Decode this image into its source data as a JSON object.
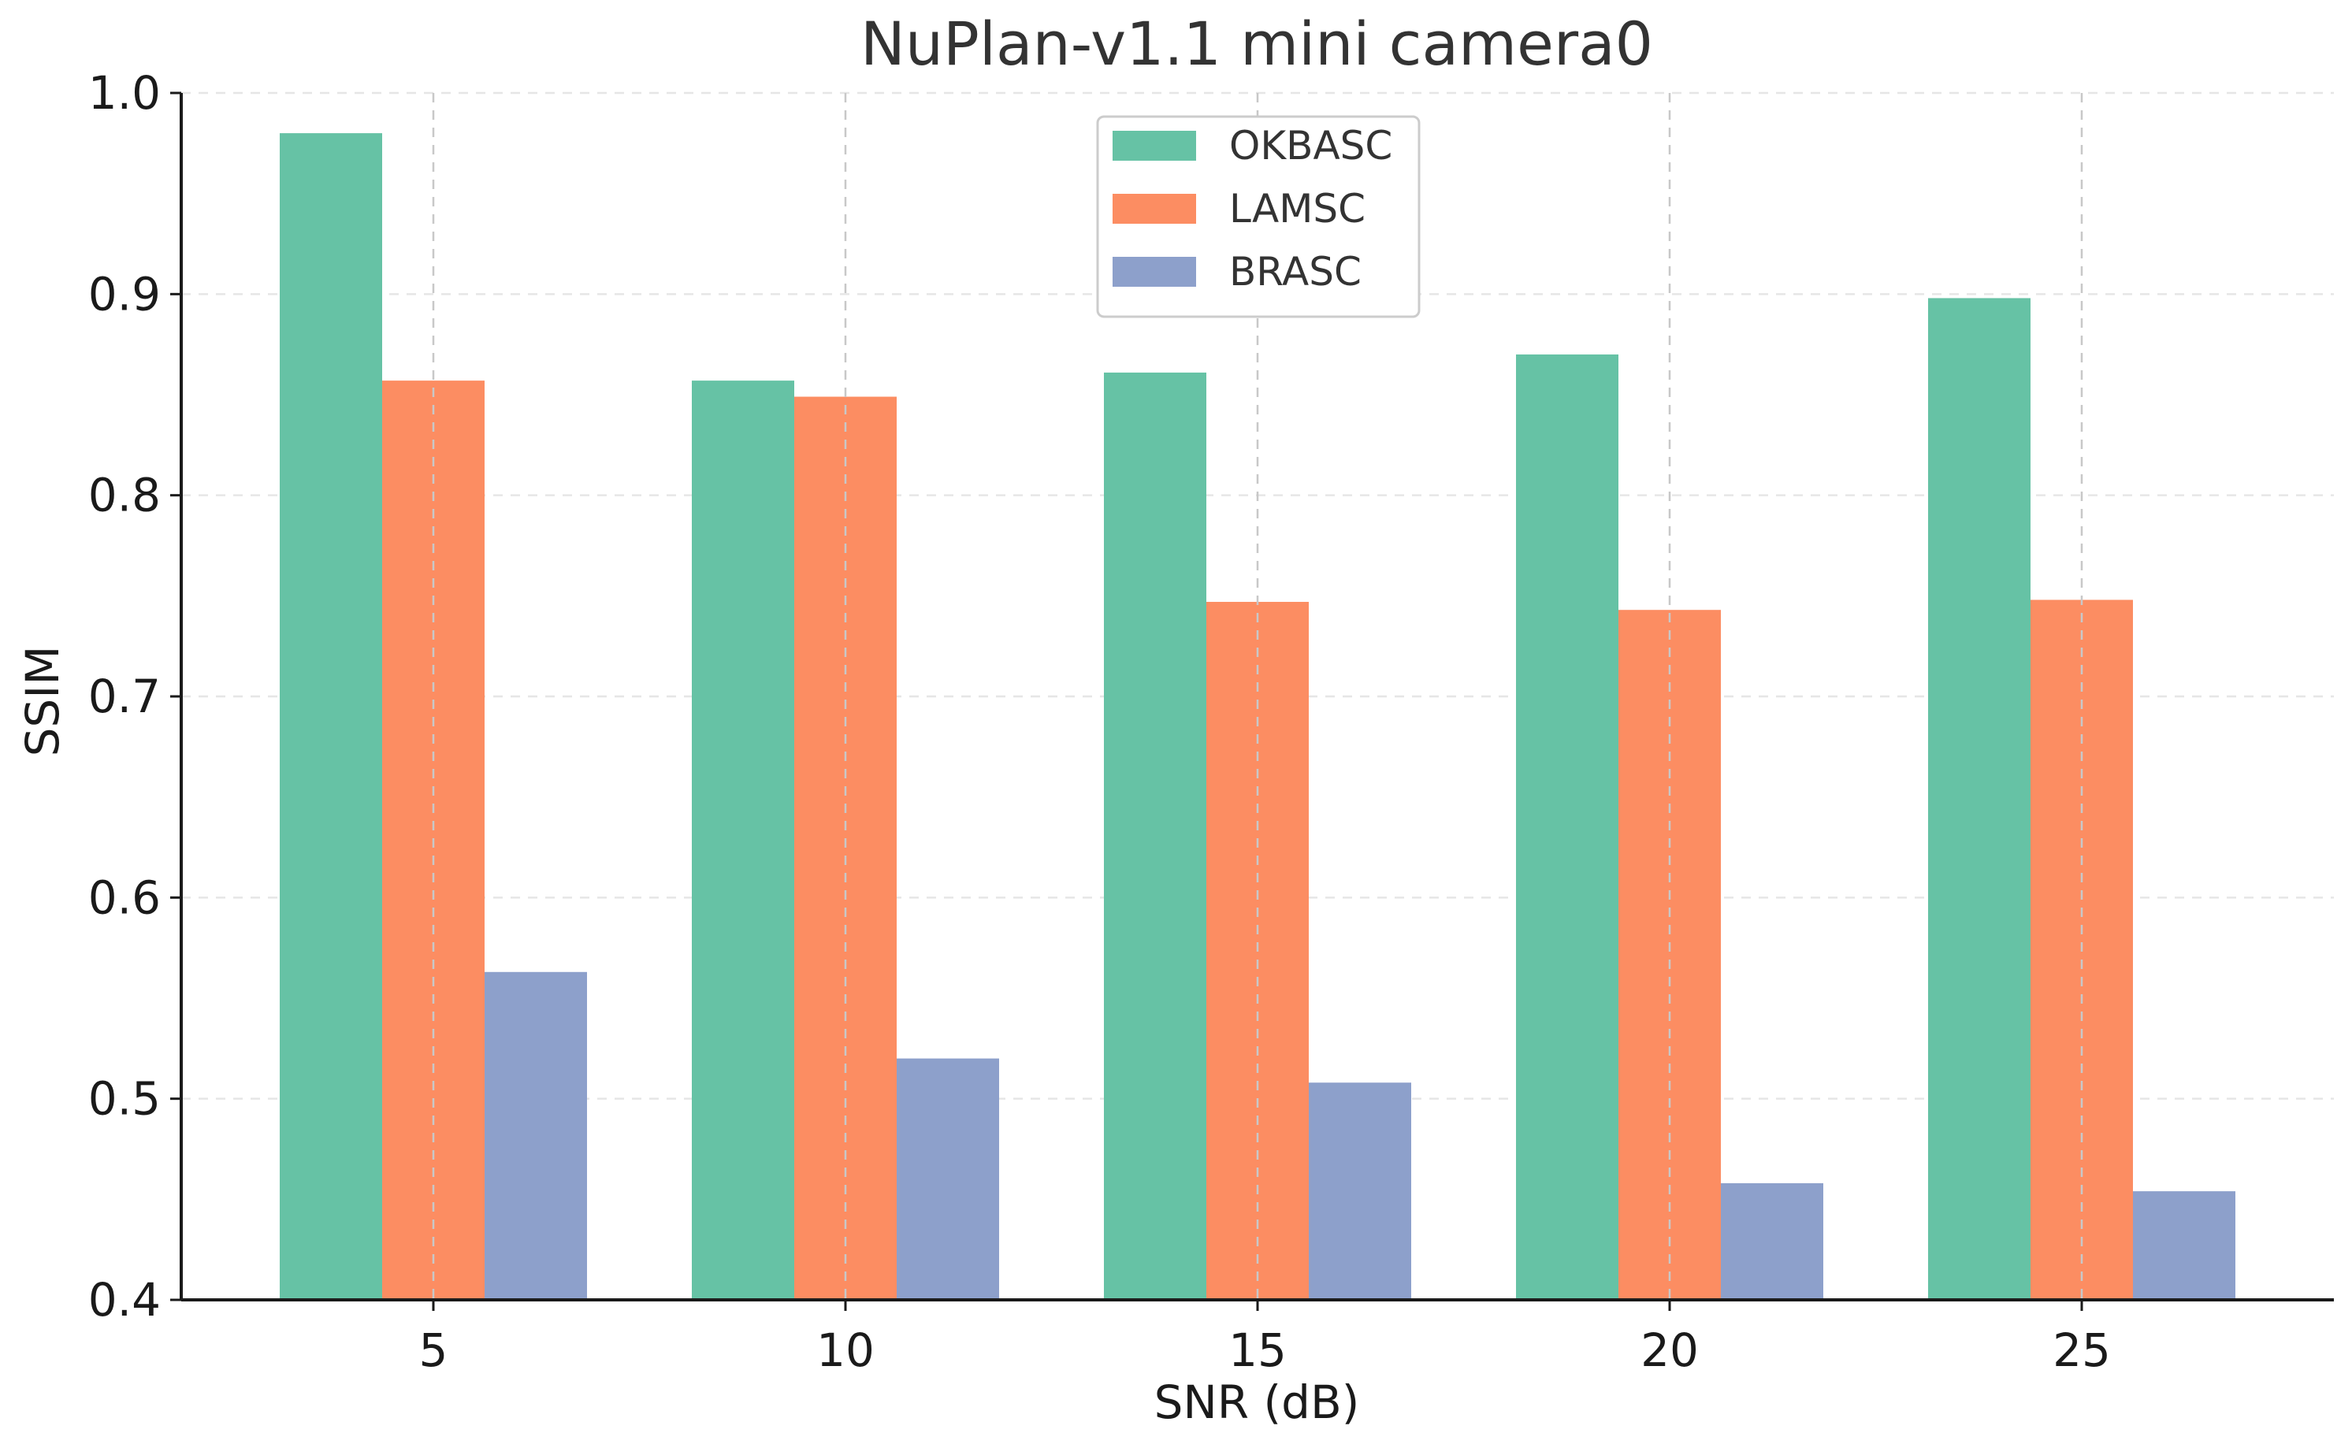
{
  "chart_data": {
    "type": "bar",
    "title": "NuPlan-v1.1 mini camera0",
    "xlabel": "SNR (dB)",
    "ylabel": "SSIM",
    "categories": [
      "5",
      "10",
      "15",
      "20",
      "25"
    ],
    "ylim": [
      0.4,
      1.0
    ],
    "yticks": [
      "0.4",
      "0.5",
      "0.6",
      "0.7",
      "0.8",
      "0.9",
      "1.0"
    ],
    "grid": true,
    "legend_position": "top-center",
    "series": [
      {
        "name": "OKBASC",
        "color": "#66c2a5",
        "values": [
          0.98,
          0.857,
          0.861,
          0.87,
          0.898
        ]
      },
      {
        "name": "LAMSC",
        "color": "#fc8d62",
        "values": [
          0.857,
          0.849,
          0.747,
          0.743,
          0.748
        ]
      },
      {
        "name": "BRASC",
        "color": "#8da0cb",
        "values": [
          0.563,
          0.52,
          0.508,
          0.458,
          0.454
        ]
      }
    ]
  }
}
